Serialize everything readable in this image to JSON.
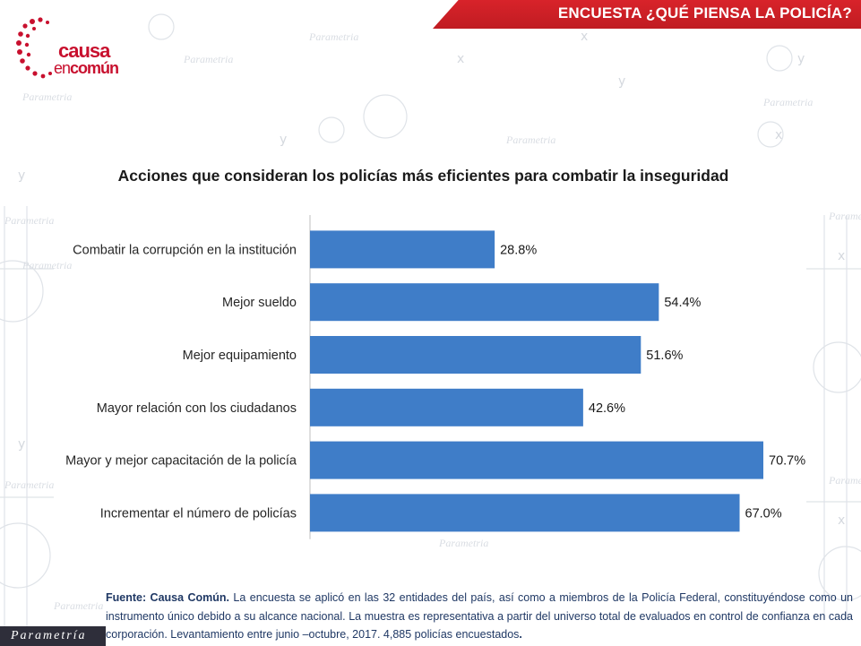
{
  "header": {
    "title": "ENCUESTA ¿QUÉ PIENSA LA POLICÍA?"
  },
  "logo": {
    "line1": "causa",
    "line2_prefix": "en",
    "line2_main": "común"
  },
  "watermark": {
    "word": "Parametria"
  },
  "brand_tag": "Parametría",
  "colors": {
    "bar": "#3f7dc8",
    "accent": "#c8102e",
    "footer_text": "#1f3864"
  },
  "chart_data": {
    "type": "bar",
    "orientation": "horizontal",
    "title": "Acciones que consideran los policías más eficientes para combatir la inseguridad",
    "categories": [
      "Combatir la corrupción en la institución",
      "Mejor sueldo",
      "Mejor equipamiento",
      "Mayor relación con los ciudadanos",
      "Mayor y mejor capacitación de la policía",
      "Incrementar el número de policías"
    ],
    "values": [
      28.8,
      54.4,
      51.6,
      42.6,
      70.7,
      67.0
    ],
    "value_labels": [
      "28.8%",
      "54.4%",
      "51.6%",
      "42.6%",
      "70.7%",
      "67.0%"
    ],
    "xlim": [
      0,
      70.7
    ],
    "grid": false,
    "legend": "none"
  },
  "footer": {
    "source_label": "Fuente: Causa Común.",
    "source_text": " La encuesta se aplicó en las 32 entidades del país, así como a miembros de la Policía Federal, constituyéndose como un instrumento único debido a su alcance nacional. La muestra es representativa a partir del universo total de evaluados en control de confianza en cada corporación. Levantamiento entre junio –octubre, 2017. 4,885 policías encuestados",
    "end_mark": "."
  }
}
